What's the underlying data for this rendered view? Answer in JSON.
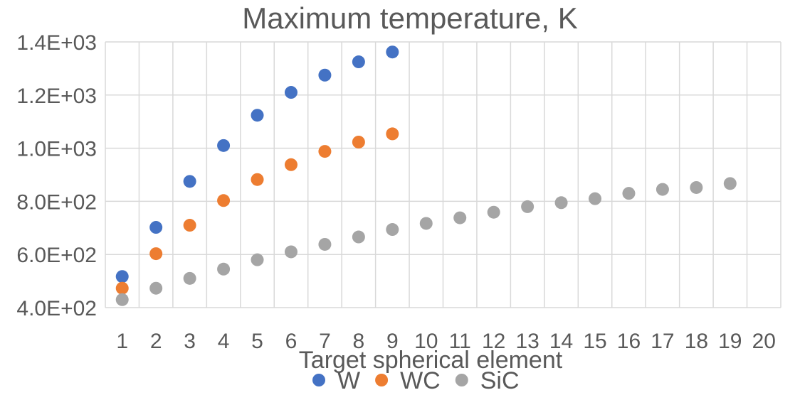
{
  "chart_data": {
    "type": "scatter",
    "title": "Maximum temperature, K",
    "xlabel": "Target spherical element",
    "ylabel": "",
    "xlim": [
      1,
      20
    ],
    "ylim": [
      400,
      1400
    ],
    "x_ticks": [
      1,
      2,
      3,
      4,
      5,
      6,
      7,
      8,
      9,
      10,
      11,
      12,
      13,
      14,
      15,
      16,
      17,
      18,
      19,
      20
    ],
    "y_ticks": [
      {
        "value": 400,
        "label": "4.0E+02"
      },
      {
        "value": 600,
        "label": "6.0E+02"
      },
      {
        "value": 800,
        "label": "8.0E+02"
      },
      {
        "value": 1000,
        "label": "1.0E+03"
      },
      {
        "value": 1200,
        "label": "1.2E+03"
      },
      {
        "value": 1400,
        "label": "1.4E+03"
      }
    ],
    "grid": true,
    "legend_position": "bottom",
    "series": [
      {
        "name": "W",
        "color": "#4472C4",
        "x": [
          1,
          2,
          3,
          4,
          5,
          6,
          7,
          8,
          9
        ],
        "y": [
          517,
          702,
          875,
          1010,
          1124,
          1210,
          1275,
          1325,
          1362
        ]
      },
      {
        "name": "WC",
        "color": "#ED7D31",
        "x": [
          1,
          2,
          3,
          4,
          5,
          6,
          7,
          8,
          9
        ],
        "y": [
          473,
          603,
          710,
          803,
          882,
          938,
          988,
          1023,
          1054
        ]
      },
      {
        "name": "SiC",
        "color": "#A5A5A5",
        "x": [
          1,
          2,
          3,
          4,
          5,
          6,
          7,
          8,
          9,
          10,
          11,
          12,
          13,
          14,
          15,
          16,
          17,
          18,
          19
        ],
        "y": [
          430,
          473,
          510,
          545,
          580,
          610,
          638,
          666,
          694,
          717,
          738,
          759,
          780,
          795,
          810,
          830,
          845,
          852,
          867
        ]
      }
    ]
  }
}
